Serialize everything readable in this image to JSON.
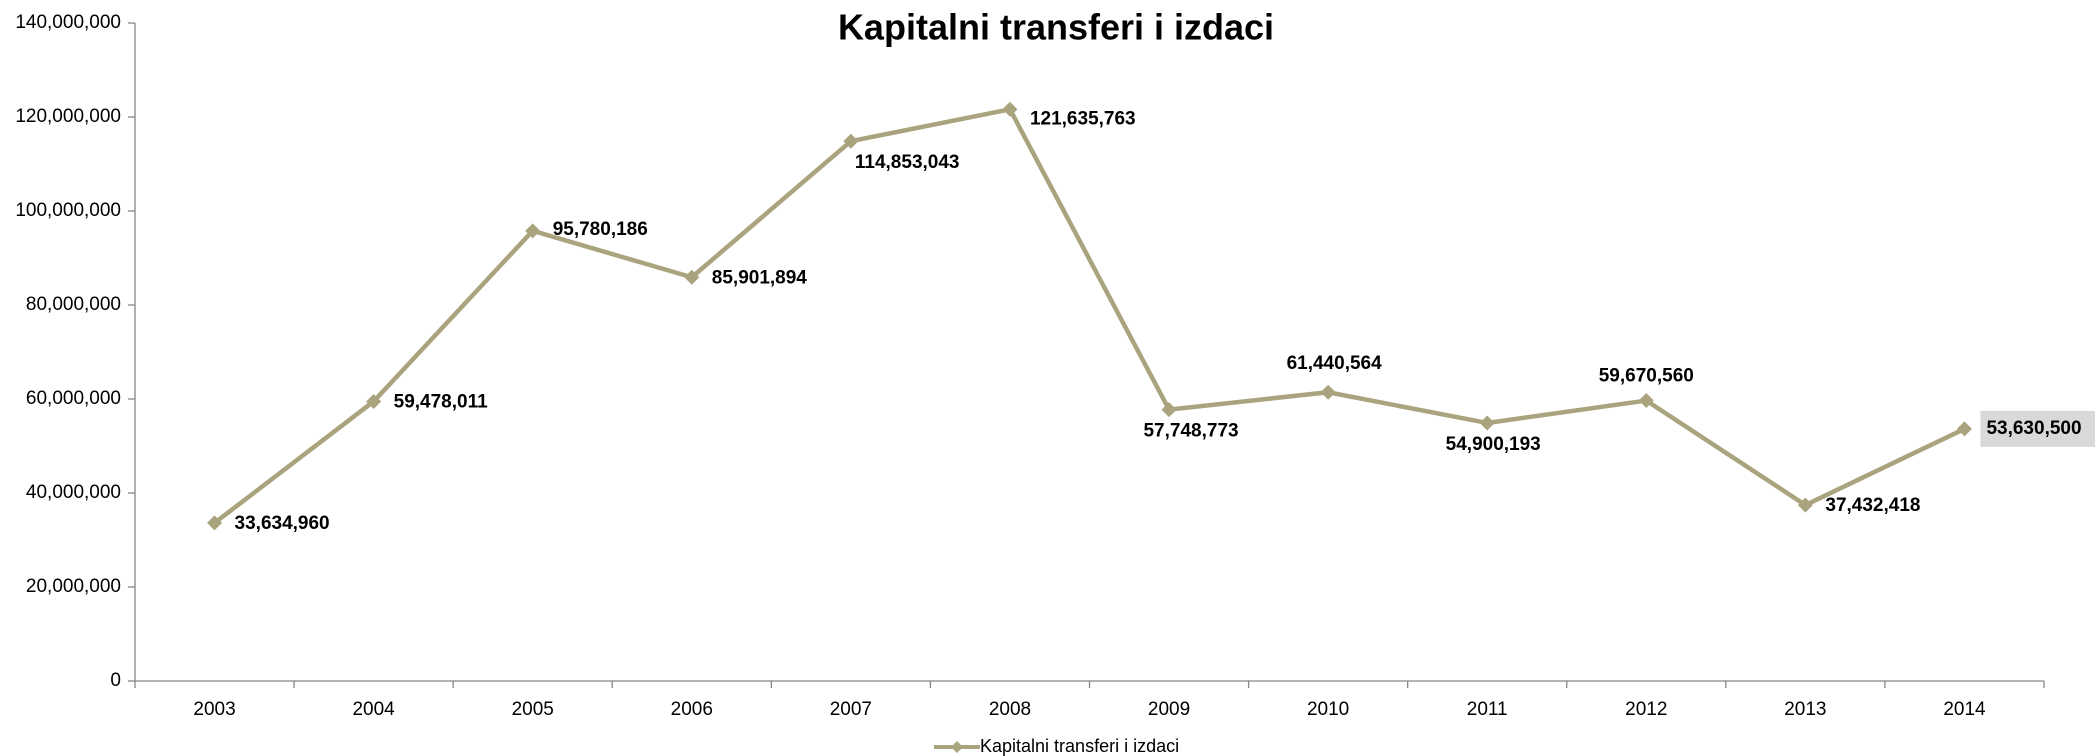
{
  "chart_data": {
    "type": "line",
    "title": "Kapitalni transferi i izdaci",
    "categories": [
      "2003",
      "2004",
      "2005",
      "2006",
      "2007",
      "2008",
      "2009",
      "2010",
      "2011",
      "2012",
      "2013",
      "2014"
    ],
    "series": [
      {
        "name": "Kapitalni transferi i izdaci",
        "color": "#a9a37e",
        "values": [
          33634960,
          59478011,
          95780186,
          85901894,
          114853043,
          121635763,
          57748773,
          61440564,
          54900193,
          59670560,
          37432418,
          53630500
        ],
        "value_labels": [
          "33,634,960",
          "59,478,011",
          "95,780,186",
          "85,901,894",
          "114,853,043",
          "121,635,763",
          "57,748,773",
          "61,440,564",
          "54,900,193",
          "59,670,560",
          "37,432,418",
          "53,630,500"
        ]
      }
    ],
    "ylim": [
      0,
      140000000
    ],
    "yticks": [
      0,
      {
        "value": 20000000,
        "label": "20,000,000"
      },
      {
        "value": 40000000,
        "label": "40,000,000"
      },
      {
        "value": 60000000,
        "label": "60,000,000"
      },
      {
        "value": 80000000,
        "label": "80,000,000"
      },
      {
        "value": 100000000,
        "label": "100,000,000"
      },
      {
        "value": 120000000,
        "label": "120,000,000"
      },
      {
        "value": 140000000,
        "label": "140,000,000"
      }
    ],
    "grid": false,
    "legend": "bottom"
  }
}
